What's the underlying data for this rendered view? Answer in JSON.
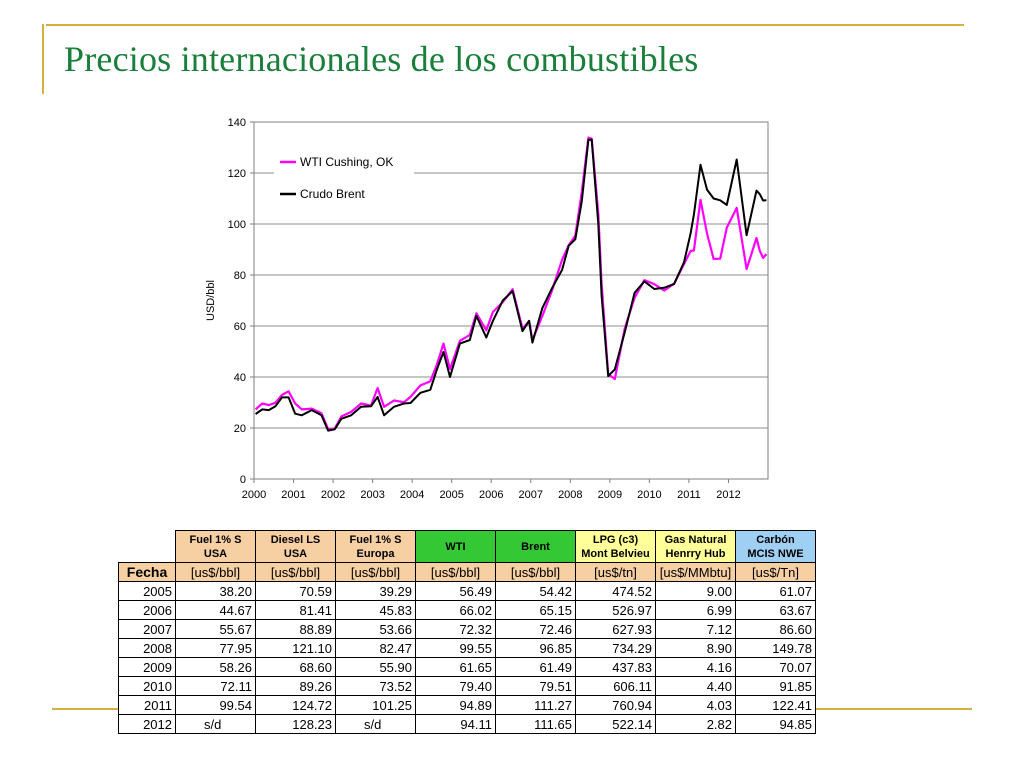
{
  "slide": {
    "title": "Precios internacionales de los combustibles"
  },
  "colors": {
    "title": "#1a7f3b",
    "frame": "#d4b13c",
    "wti_series": "#ff00ff",
    "brent_series": "#000000"
  },
  "chart_data": {
    "type": "line",
    "ylabel": "USD/bbl",
    "xlabel": "",
    "ylim": [
      0,
      140
    ],
    "yticks": [
      0,
      20,
      40,
      60,
      80,
      100,
      120,
      140
    ],
    "xlim": [
      "2000-01",
      "2012-12"
    ],
    "xticks": [
      "2000",
      "2001",
      "2002",
      "2003",
      "2004",
      "2005",
      "2006",
      "2007",
      "2008",
      "2009",
      "2010",
      "2011",
      "2012"
    ],
    "grid": "horizontal",
    "legend_position": "top-left",
    "series": [
      {
        "name": "WTI Cushing, OK",
        "color": "#ff00ff",
        "x": [
          "2000-01",
          "2000-03",
          "2000-05",
          "2000-07",
          "2000-09",
          "2000-11",
          "2001-01",
          "2001-03",
          "2001-06",
          "2001-09",
          "2001-11",
          "2002-01",
          "2002-03",
          "2002-06",
          "2002-09",
          "2002-12",
          "2003-02",
          "2003-04",
          "2003-07",
          "2003-10",
          "2003-12",
          "2004-03",
          "2004-06",
          "2004-08",
          "2004-10",
          "2004-12",
          "2005-03",
          "2005-06",
          "2005-08",
          "2005-11",
          "2006-01",
          "2006-04",
          "2006-07",
          "2006-10",
          "2006-12",
          "2007-01",
          "2007-04",
          "2007-07",
          "2007-10",
          "2007-12",
          "2008-02",
          "2008-04",
          "2008-06",
          "2008-07",
          "2008-09",
          "2008-10",
          "2008-12",
          "2009-02",
          "2009-05",
          "2009-08",
          "2009-11",
          "2010-02",
          "2010-05",
          "2010-08",
          "2010-11",
          "2011-01",
          "2011-02",
          "2011-04",
          "2011-06",
          "2011-08",
          "2011-10",
          "2011-12",
          "2012-03",
          "2012-06",
          "2012-09",
          "2012-10",
          "2012-11",
          "2012-12"
        ],
        "y": [
          27.3,
          29.6,
          29.0,
          29.9,
          33.0,
          34.4,
          29.6,
          27.3,
          27.6,
          25.8,
          19.6,
          19.7,
          24.5,
          26.3,
          29.6,
          28.8,
          35.7,
          28.3,
          30.8,
          30.1,
          32.2,
          36.7,
          38.3,
          44.9,
          53.1,
          43.1,
          54.2,
          56.5,
          65.0,
          58.3,
          65.5,
          69.4,
          74.4,
          58.9,
          62.0,
          54.5,
          63.9,
          74.1,
          86.0,
          91.7,
          95.4,
          112.6,
          133.9,
          133.4,
          104.1,
          76.6,
          41.1,
          39.2,
          59.0,
          71.1,
          78.0,
          76.4,
          73.9,
          76.6,
          84.3,
          89.4,
          89.6,
          109.5,
          96.3,
          86.3,
          86.4,
          98.6,
          106.3,
          82.3,
          94.5,
          89.5,
          86.7,
          88.2
        ]
      },
      {
        "name": "Crudo Brent",
        "color": "#000000",
        "x": [
          "2000-01",
          "2000-03",
          "2000-05",
          "2000-07",
          "2000-09",
          "2000-11",
          "2001-01",
          "2001-03",
          "2001-06",
          "2001-09",
          "2001-11",
          "2002-01",
          "2002-03",
          "2002-06",
          "2002-09",
          "2002-12",
          "2003-02",
          "2003-04",
          "2003-07",
          "2003-10",
          "2003-12",
          "2004-03",
          "2004-06",
          "2004-08",
          "2004-10",
          "2004-12",
          "2005-03",
          "2005-06",
          "2005-08",
          "2005-11",
          "2006-01",
          "2006-04",
          "2006-07",
          "2006-10",
          "2006-12",
          "2007-01",
          "2007-04",
          "2007-07",
          "2007-10",
          "2007-12",
          "2008-02",
          "2008-04",
          "2008-06",
          "2008-07",
          "2008-09",
          "2008-10",
          "2008-12",
          "2009-02",
          "2009-05",
          "2009-08",
          "2009-11",
          "2010-02",
          "2010-05",
          "2010-08",
          "2010-11",
          "2011-01",
          "2011-02",
          "2011-04",
          "2011-06",
          "2011-08",
          "2011-10",
          "2011-12",
          "2012-03",
          "2012-06",
          "2012-09",
          "2012-10",
          "2012-11",
          "2012-12"
        ],
        "y": [
          25.5,
          27.3,
          27.0,
          28.5,
          32.0,
          32.0,
          25.6,
          25.0,
          27.0,
          25.0,
          19.0,
          19.5,
          23.6,
          25.0,
          28.3,
          28.5,
          32.2,
          25.0,
          28.3,
          29.6,
          29.8,
          33.8,
          35.0,
          43.0,
          49.8,
          40.0,
          53.1,
          54.5,
          64.0,
          55.5,
          62.0,
          70.0,
          73.7,
          58.0,
          62.0,
          53.5,
          67.0,
          75.0,
          82.0,
          91.5,
          94.0,
          109.0,
          133.0,
          133.1,
          100.0,
          72.0,
          40.4,
          43.0,
          57.5,
          73.0,
          77.5,
          74.5,
          75.0,
          76.5,
          85.0,
          96.3,
          103.7,
          123.2,
          113.5,
          110.0,
          109.3,
          107.5,
          125.3,
          95.6,
          113.1,
          111.7,
          109.2,
          109.3
        ]
      }
    ]
  },
  "table": {
    "headers": [
      {
        "line1": "Fuel 1% S",
        "line2": "USA",
        "color": "#f6cfa3"
      },
      {
        "line1": "Diesel LS",
        "line2": "USA",
        "color": "#f6cfa3"
      },
      {
        "line1": "Fuel 1% S",
        "line2": "Europa",
        "color": "#f6cfa3"
      },
      {
        "line1": "WTI",
        "line2": "",
        "color": "#34c934"
      },
      {
        "line1": "Brent",
        "line2": "",
        "color": "#34c934"
      },
      {
        "line1": "LPG (c3)",
        "line2": "Mont Belvieu",
        "color": "#ffff99"
      },
      {
        "line1": "Gas Natural",
        "line2": "Henrry Hub",
        "color": "#ffff99"
      },
      {
        "line1": "Carbón",
        "line2": "MCIS NWE",
        "color": "#9fd0f4"
      }
    ],
    "fecha_label": "Fecha",
    "units": [
      "[us$/bbl]",
      "[us$/bbl]",
      "[us$/bbl]",
      "[us$/bbl]",
      "[us$/bbl]",
      "[us$/tn]",
      "[us$/MMbtu]",
      "[us$/Tn]"
    ],
    "rows": [
      [
        "2005",
        "38.20",
        "70.59",
        "39.29",
        "56.49",
        "54.42",
        "474.52",
        "9.00",
        "61.07"
      ],
      [
        "2006",
        "44.67",
        "81.41",
        "45.83",
        "66.02",
        "65.15",
        "526.97",
        "6.99",
        "63.67"
      ],
      [
        "2007",
        "55.67",
        "88.89",
        "53.66",
        "72.32",
        "72.46",
        "627.93",
        "7.12",
        "86.60"
      ],
      [
        "2008",
        "77.95",
        "121.10",
        "82.47",
        "99.55",
        "96.85",
        "734.29",
        "8.90",
        "149.78"
      ],
      [
        "2009",
        "58.26",
        "68.60",
        "55.90",
        "61.65",
        "61.49",
        "437.83",
        "4.16",
        "70.07"
      ],
      [
        "2010",
        "72.11",
        "89.26",
        "73.52",
        "79.40",
        "79.51",
        "606.11",
        "4.40",
        "91.85"
      ],
      [
        "2011",
        "99.54",
        "124.72",
        "101.25",
        "94.89",
        "111.27",
        "760.94",
        "4.03",
        "122.41"
      ],
      [
        "2012",
        "s/d",
        "128.23",
        "s/d",
        "94.11",
        "111.65",
        "522.14",
        "2.82",
        "94.85"
      ]
    ]
  }
}
